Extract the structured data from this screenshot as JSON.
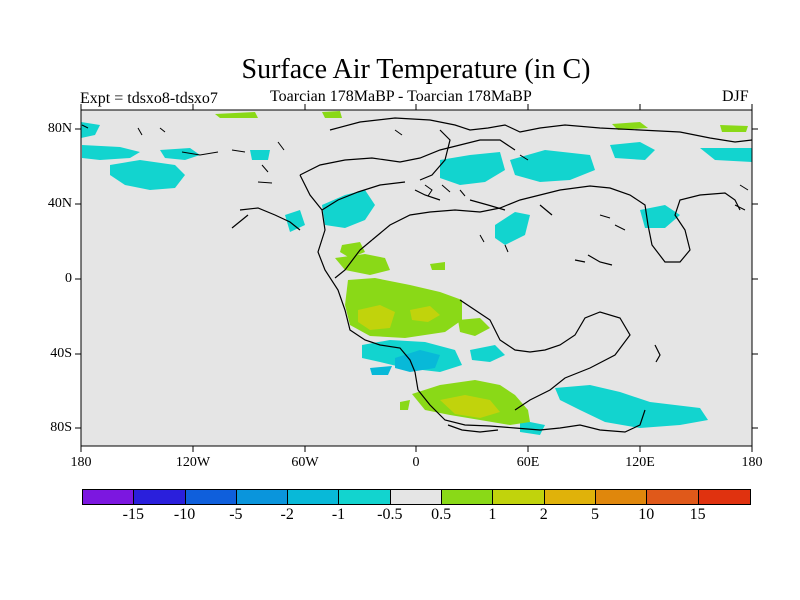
{
  "title": "Surface Air Temperature (in C)",
  "subtitle_left": "Expt = tdsxo8-tdsxo7",
  "subtitle_center": "Toarcian 178MaBP - Toarcian 178MaBP",
  "subtitle_right": "DJF",
  "lat_labels": [
    "80N",
    "40N",
    "0",
    "40S",
    "80S"
  ],
  "lon_labels": [
    "180",
    "120W",
    "60W",
    "0",
    "60E",
    "120E",
    "180"
  ],
  "colors": {
    "background": "#e5e5e5",
    "cyan_light": "#12d4cf",
    "cyan_mid": "#08b9d8",
    "green": "#8ad917",
    "yellow_green": "#c1d30c",
    "coast": "#000000"
  },
  "colorbar": {
    "colors": [
      "#7c17e0",
      "#2a1fdc",
      "#0f5fdc",
      "#0a95dc",
      "#08b9d8",
      "#12d4cf",
      "#e5e5e5",
      "#8ad917",
      "#c1d30c",
      "#e0b20a",
      "#e0870c",
      "#e0591a",
      "#e0320f"
    ],
    "labels": [
      "-15",
      "-10",
      "-5",
      "-2",
      "-1",
      "-0.5",
      "0.5",
      "1",
      "2",
      "5",
      "10",
      "15"
    ]
  }
}
